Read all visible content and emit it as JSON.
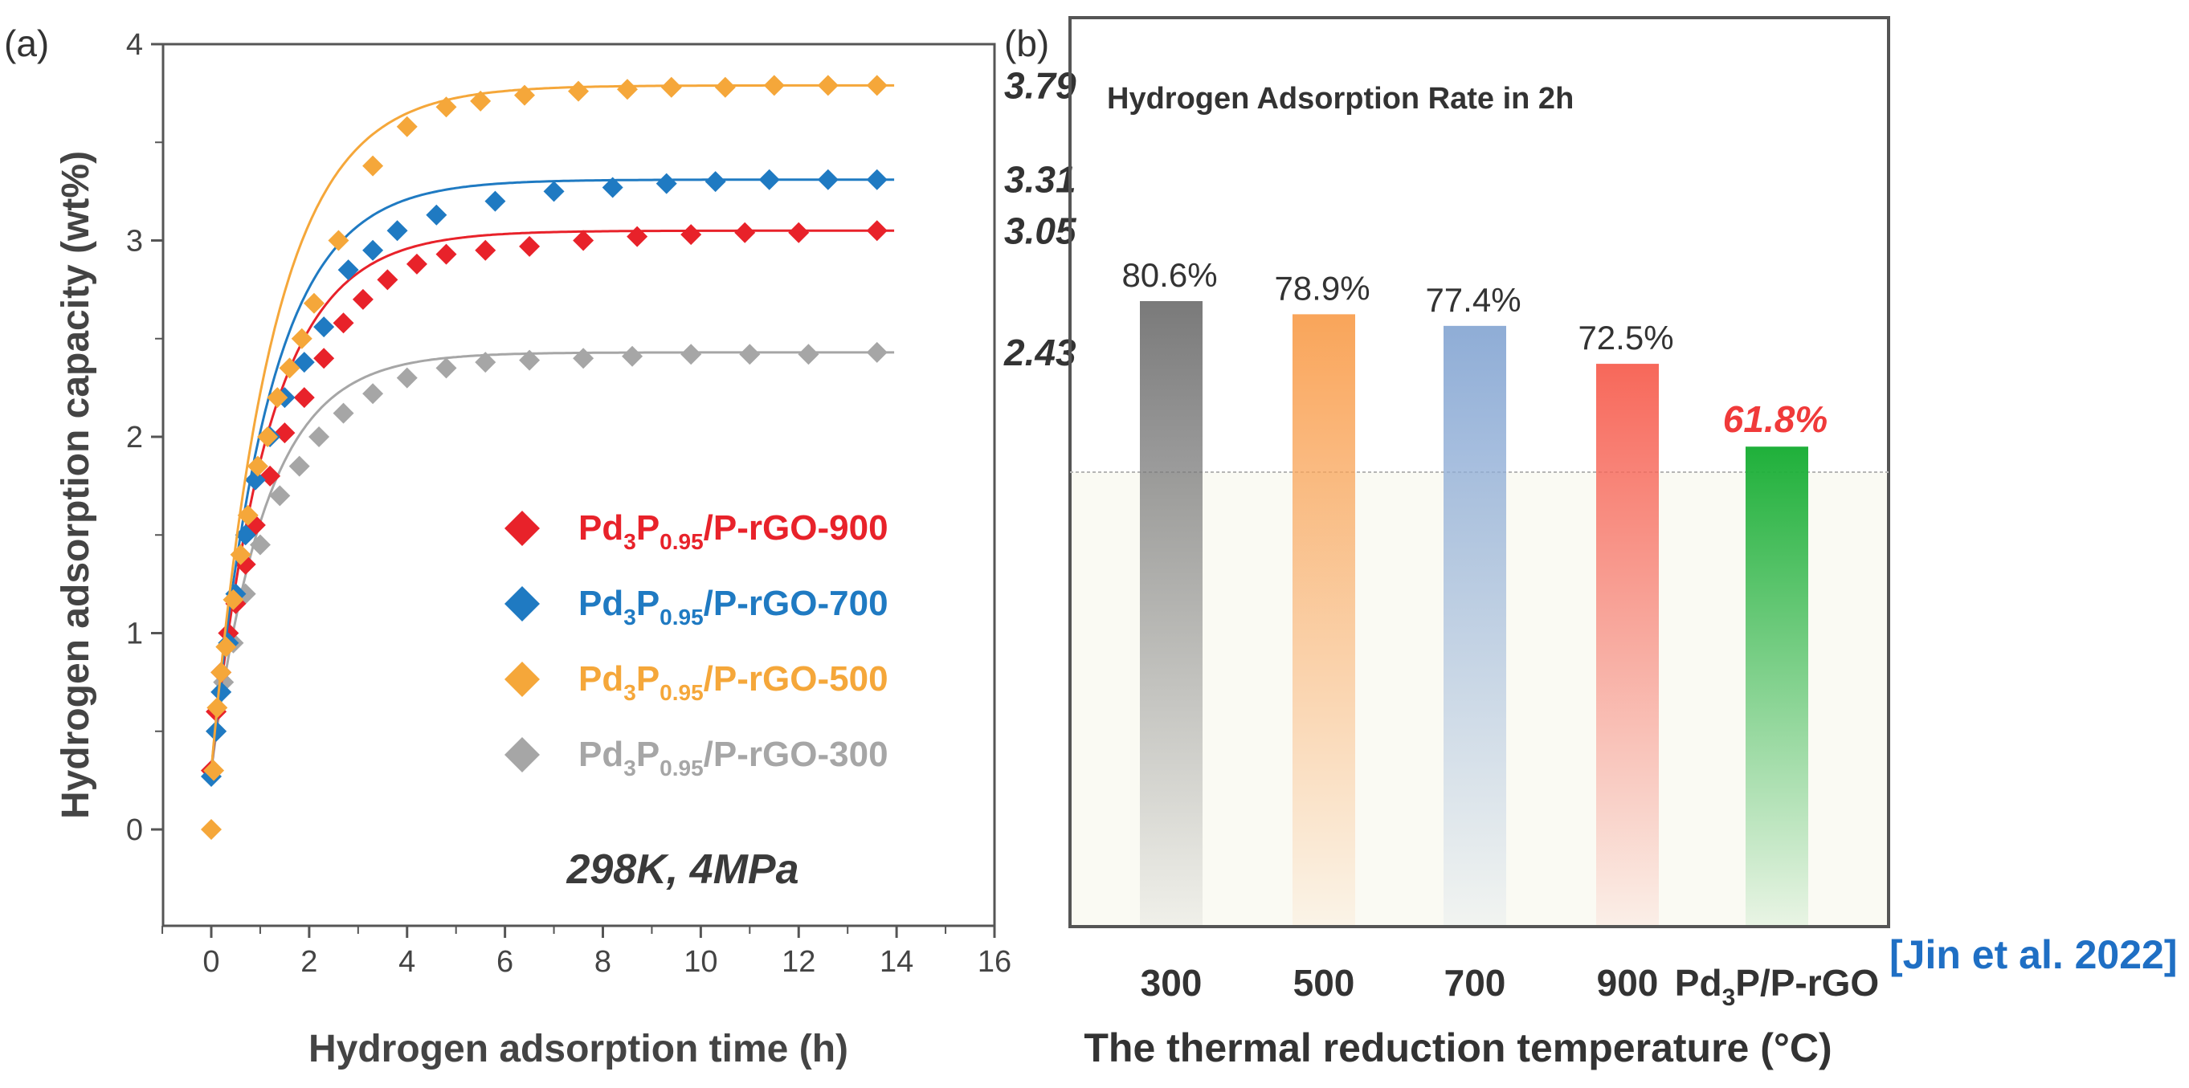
{
  "chart_data": [
    {
      "type": "scatter",
      "panel_label": "(a)",
      "xlabel": "Hydrogen adsorption time (h)",
      "ylabel": "Hydrogen adsorption capacity (wt%)",
      "xlim": [
        -1,
        16
      ],
      "ylim": [
        -0.5,
        4
      ],
      "xticks": [
        "0",
        "2",
        "4",
        "6",
        "8",
        "10",
        "12",
        "14",
        "16"
      ],
      "yticks": [
        "0",
        "1",
        "2",
        "3",
        "4"
      ],
      "annotation": "298K, 4MPa",
      "legend_position": "center-right",
      "series": [
        {
          "name": "Pd3P0.95/P-rGO-900",
          "name_parts": [
            "Pd",
            "3",
            "P",
            "0.95",
            "/P-rGO-900"
          ],
          "color": "#e8222a",
          "end_label": "3.05",
          "x": [
            0,
            0.1,
            0.2,
            0.35,
            0.5,
            0.7,
            0.9,
            1.2,
            1.5,
            1.9,
            2.3,
            2.7,
            3.1,
            3.6,
            4.2,
            4.8,
            5.6,
            6.5,
            7.6,
            8.7,
            9.8,
            10.9,
            12.0,
            13.6
          ],
          "y": [
            0.3,
            0.6,
            0.8,
            1.0,
            1.15,
            1.35,
            1.55,
            1.8,
            2.02,
            2.2,
            2.4,
            2.58,
            2.7,
            2.8,
            2.88,
            2.93,
            2.95,
            2.97,
            3.0,
            3.02,
            3.03,
            3.04,
            3.04,
            3.05
          ]
        },
        {
          "name": "Pd3P0.95/P-rGO-700",
          "name_parts": [
            "Pd",
            "3",
            "P",
            "0.95",
            "/P-rGO-700"
          ],
          "color": "#1f7ac2",
          "end_label": "3.31",
          "x": [
            0,
            0.1,
            0.2,
            0.35,
            0.5,
            0.7,
            0.9,
            1.2,
            1.5,
            1.9,
            2.3,
            2.8,
            3.3,
            3.8,
            4.6,
            5.8,
            7.0,
            8.2,
            9.3,
            10.3,
            11.4,
            12.6,
            13.6
          ],
          "y": [
            0.27,
            0.5,
            0.7,
            0.95,
            1.2,
            1.5,
            1.78,
            2.0,
            2.2,
            2.38,
            2.56,
            2.85,
            2.95,
            3.05,
            3.13,
            3.2,
            3.25,
            3.27,
            3.29,
            3.3,
            3.31,
            3.31,
            3.31
          ]
        },
        {
          "name": "Pd3P0.95/P-rGO-500",
          "name_parts": [
            "Pd",
            "3",
            "P",
            "0.95",
            "/P-rGO-500"
          ],
          "color": "#f5a73a",
          "end_label": "3.79",
          "x": [
            0,
            0.05,
            0.12,
            0.2,
            0.3,
            0.45,
            0.6,
            0.75,
            0.95,
            1.15,
            1.35,
            1.6,
            1.85,
            2.1,
            2.6,
            3.3,
            4.0,
            4.8,
            5.5,
            6.4,
            7.5,
            8.5,
            9.4,
            10.5,
            11.5,
            12.6,
            13.6
          ],
          "y": [
            0,
            0.3,
            0.62,
            0.8,
            0.93,
            1.17,
            1.4,
            1.6,
            1.85,
            2.0,
            2.2,
            2.35,
            2.5,
            2.68,
            3.0,
            3.38,
            3.58,
            3.68,
            3.71,
            3.74,
            3.76,
            3.77,
            3.78,
            3.78,
            3.79,
            3.79,
            3.79
          ]
        },
        {
          "name": "Pd3P0.95/P-rGO-300",
          "name_parts": [
            "Pd",
            "3",
            "P",
            "0.95",
            "/P-rGO-300"
          ],
          "color": "#a6a6a6",
          "end_label": "2.43",
          "x": [
            0,
            0.1,
            0.25,
            0.45,
            0.7,
            1.0,
            1.4,
            1.8,
            2.2,
            2.7,
            3.3,
            4.0,
            4.8,
            5.6,
            6.5,
            7.6,
            8.6,
            9.8,
            11.0,
            12.2,
            13.6
          ],
          "y": [
            0.3,
            0.5,
            0.75,
            0.95,
            1.2,
            1.45,
            1.7,
            1.85,
            2.0,
            2.12,
            2.22,
            2.3,
            2.35,
            2.38,
            2.39,
            2.4,
            2.41,
            2.42,
            2.42,
            2.42,
            2.43
          ]
        }
      ]
    },
    {
      "type": "bar",
      "panel_label": "(b)",
      "title": "Hydrogen Adsorption Rate in 2h",
      "xlabel": "The thermal reduction temperature (°C)",
      "ylabel": "",
      "ylim": [
        0,
        100
      ],
      "categories": [
        "300",
        "500",
        "700",
        "900",
        "Pd3P/P-rGO"
      ],
      "category_parts": [
        [
          "300"
        ],
        [
          "500"
        ],
        [
          "700"
        ],
        [
          "900"
        ],
        [
          "Pd",
          "3",
          "P/P-rGO"
        ]
      ],
      "values": [
        80.6,
        78.9,
        77.4,
        72.5,
        61.8
      ],
      "value_labels": [
        "80.6%",
        "78.9%",
        "77.4%",
        "72.5%",
        "61.8%"
      ],
      "colors": [
        "#7a7a7a",
        "#f9a55a",
        "#8fadd6",
        "#f7685a",
        "#1fb03a"
      ],
      "reference_line": 61.8
    }
  ],
  "citation": "[Jin et al. 2022]"
}
